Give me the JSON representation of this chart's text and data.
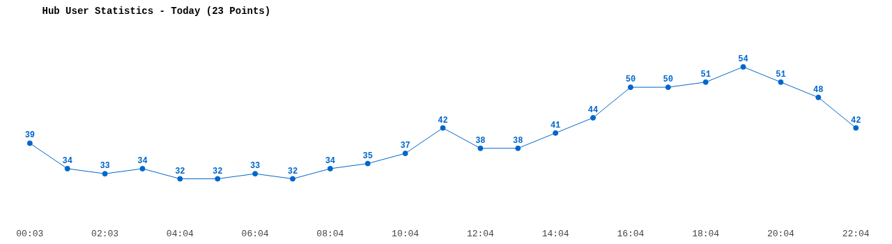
{
  "chart_data": {
    "type": "line",
    "title": "Hub User Statistics - Today (23 Points)",
    "categories": [
      "00:03",
      null,
      "02:03",
      null,
      "04:04",
      null,
      "06:04",
      null,
      "08:04",
      null,
      "10:04",
      null,
      "12:04",
      null,
      "14:04",
      null,
      "16:04",
      null,
      "18:04",
      null,
      "20:04",
      null,
      "22:04"
    ],
    "series": [
      {
        "color": "#0066cc",
        "values": [
          39,
          34,
          33,
          34,
          32,
          32,
          33,
          32,
          34,
          35,
          37,
          42,
          38,
          38,
          41,
          44,
          50,
          50,
          51,
          54,
          51,
          48,
          42
        ]
      }
    ],
    "data_labels": true,
    "marker": "circle",
    "line_style": "solid",
    "grid": false
  }
}
